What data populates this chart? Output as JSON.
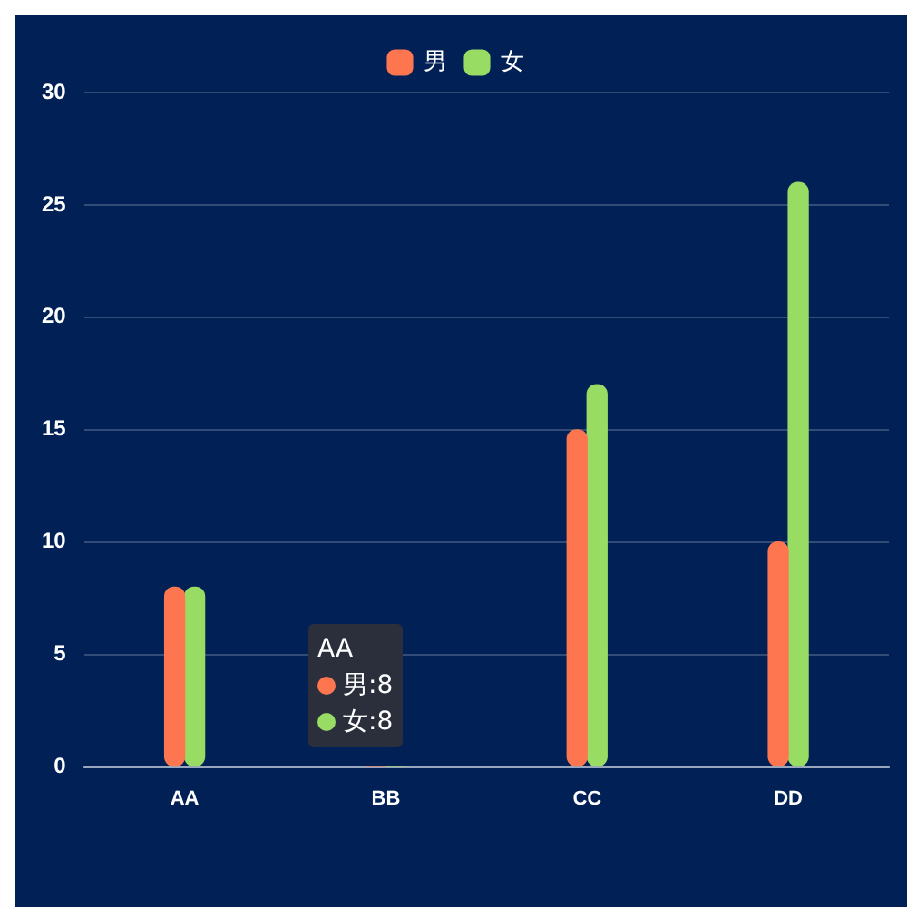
{
  "chart_data": {
    "type": "bar",
    "categories": [
      "AA",
      "BB",
      "CC",
      "DD"
    ],
    "series": [
      {
        "name": "男",
        "color": "#fd7650",
        "values": [
          8,
          0,
          15,
          10
        ]
      },
      {
        "name": "女",
        "color": "#98dc64",
        "values": [
          8,
          0,
          17,
          26
        ]
      }
    ],
    "ylim": [
      0,
      30
    ],
    "yticks": [
      0,
      5,
      10,
      15,
      20,
      25,
      30
    ],
    "grid": "y",
    "legend": "top",
    "annotations": [
      "AA",
      "男:8",
      "女:8"
    ]
  }
}
